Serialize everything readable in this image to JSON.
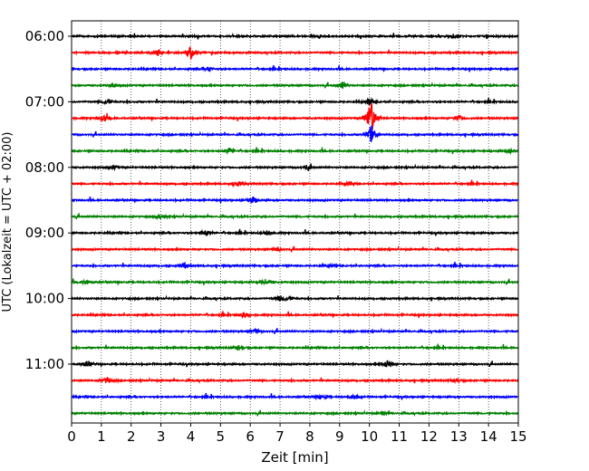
{
  "chart_data": {
    "type": "line",
    "xlabel": "Zeit  [min]",
    "ylabel": "UTC (Lokalzeit = UTC + 02:00)",
    "xlim": [
      0,
      15
    ],
    "x_ticks": [
      "0",
      "1",
      "2",
      "3",
      "4",
      "5",
      "6",
      "7",
      "8",
      "9",
      "10",
      "11",
      "12",
      "13",
      "14",
      "15"
    ],
    "y_tick_labels": [
      "06:00",
      "07:00",
      "08:00",
      "09:00",
      "10:00",
      "11:00"
    ],
    "grid": "vertical-dotted",
    "trace_colors": [
      "#000000",
      "#ff0000",
      "#0000ff",
      "#008000"
    ],
    "traces": [
      {
        "start": "06:00",
        "color": "#000000",
        "events": [
          {
            "t": 12.8,
            "amp": 0.3
          }
        ]
      },
      {
        "start": "06:15",
        "color": "#ff0000",
        "events": [
          {
            "t": 2.9,
            "amp": 0.4
          },
          {
            "t": 4.0,
            "amp": 0.9
          }
        ]
      },
      {
        "start": "06:30",
        "color": "#0000ff",
        "events": [
          {
            "t": 4.6,
            "amp": 0.3
          }
        ]
      },
      {
        "start": "06:45",
        "color": "#008000",
        "events": [
          {
            "t": 1.4,
            "amp": 0.3
          },
          {
            "t": 9.1,
            "amp": 0.5
          }
        ]
      },
      {
        "start": "07:00",
        "color": "#000000",
        "events": [
          {
            "t": 1.2,
            "amp": 0.4
          },
          {
            "t": 10.0,
            "amp": 0.5
          }
        ]
      },
      {
        "start": "07:15",
        "color": "#ff0000",
        "events": [
          {
            "t": 1.1,
            "amp": 0.5
          },
          {
            "t": 10.05,
            "amp": 2.8
          },
          {
            "t": 13.0,
            "amp": 0.4
          }
        ]
      },
      {
        "start": "07:30",
        "color": "#0000ff",
        "events": [
          {
            "t": 10.05,
            "amp": 1.2
          }
        ]
      },
      {
        "start": "07:45",
        "color": "#008000",
        "events": [
          {
            "t": 5.3,
            "amp": 0.4
          },
          {
            "t": 14.7,
            "amp": 0.3
          }
        ]
      },
      {
        "start": "08:00",
        "color": "#000000",
        "events": [
          {
            "t": 1.4,
            "amp": 0.3
          },
          {
            "t": 7.9,
            "amp": 0.3
          }
        ]
      },
      {
        "start": "08:15",
        "color": "#ff0000",
        "events": [
          {
            "t": 5.6,
            "amp": 0.4
          },
          {
            "t": 9.3,
            "amp": 0.3
          }
        ]
      },
      {
        "start": "08:30",
        "color": "#0000ff",
        "events": [
          {
            "t": 6.1,
            "amp": 0.5
          }
        ]
      },
      {
        "start": "08:45",
        "color": "#008000",
        "events": [
          {
            "t": 3.0,
            "amp": 0.4
          }
        ]
      },
      {
        "start": "09:00",
        "color": "#000000",
        "events": [
          {
            "t": 4.5,
            "amp": 0.5
          },
          {
            "t": 6.6,
            "amp": 0.4
          }
        ]
      },
      {
        "start": "09:15",
        "color": "#ff0000",
        "events": [
          {
            "t": 6.9,
            "amp": 0.3
          }
        ]
      },
      {
        "start": "09:30",
        "color": "#0000ff",
        "events": [
          {
            "t": 3.8,
            "amp": 0.4
          },
          {
            "t": 8.6,
            "amp": 0.3
          }
        ]
      },
      {
        "start": "09:45",
        "color": "#008000",
        "events": [
          {
            "t": 0.5,
            "amp": 0.4
          },
          {
            "t": 6.5,
            "amp": 0.4
          }
        ]
      },
      {
        "start": "10:00",
        "color": "#000000",
        "events": [
          {
            "t": 7.0,
            "amp": 0.4
          },
          {
            "t": 7.3,
            "amp": 0.3
          }
        ]
      },
      {
        "start": "10:15",
        "color": "#ff0000",
        "events": [
          {
            "t": 5.8,
            "amp": 0.4
          }
        ]
      },
      {
        "start": "10:30",
        "color": "#0000ff",
        "events": [
          {
            "t": 6.2,
            "amp": 0.3
          }
        ]
      },
      {
        "start": "10:45",
        "color": "#008000",
        "events": [
          {
            "t": 5.6,
            "amp": 0.3
          }
        ]
      },
      {
        "start": "11:00",
        "color": "#000000",
        "events": [
          {
            "t": 0.5,
            "amp": 0.5
          },
          {
            "t": 10.6,
            "amp": 0.6
          }
        ]
      },
      {
        "start": "11:15",
        "color": "#ff0000",
        "events": [
          {
            "t": 1.2,
            "amp": 0.5
          },
          {
            "t": 12.9,
            "amp": 0.3
          }
        ]
      },
      {
        "start": "11:30",
        "color": "#0000ff",
        "events": [
          {
            "t": 9.5,
            "amp": 0.4
          },
          {
            "t": 8.4,
            "amp": 0.3
          }
        ]
      },
      {
        "start": "11:45",
        "color": "#008000",
        "events": [
          {
            "t": 10.5,
            "amp": 0.2
          }
        ]
      }
    ]
  }
}
